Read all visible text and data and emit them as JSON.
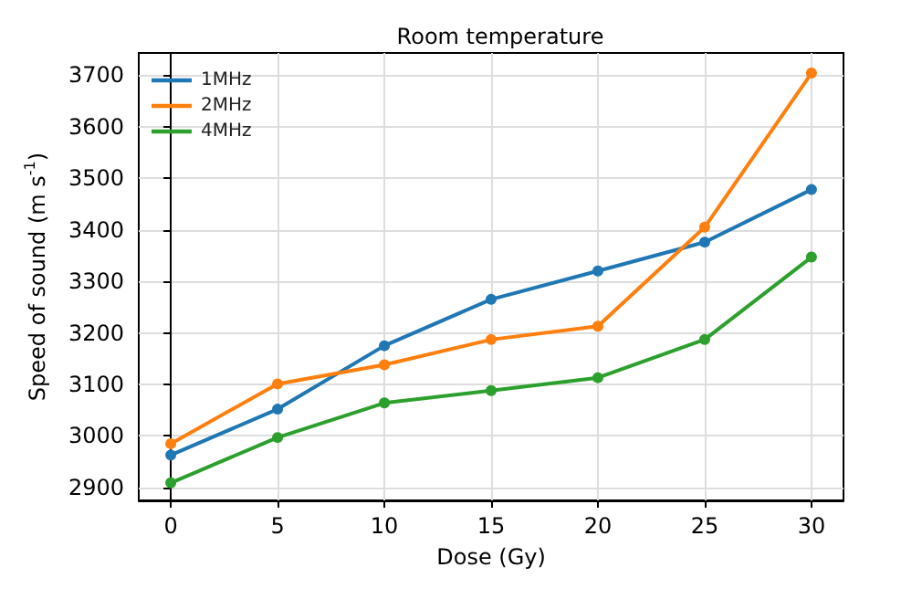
{
  "chart_data": {
    "type": "line",
    "title": "Room temperature",
    "xlabel": "Dose (Gy)",
    "ylabel": "Speed of sound (m s$^{-1}$)",
    "x": [
      0,
      5,
      10,
      15,
      20,
      25,
      30
    ],
    "series": [
      {
        "name": "1MHz",
        "color": "#1f77b4",
        "values": [
          2963,
          3052,
          3175,
          3265,
          3320,
          3376,
          3478
        ]
      },
      {
        "name": "2MHz",
        "color": "#ff7f0e",
        "values": [
          2985,
          3101,
          3138,
          3187,
          3213,
          3405,
          3704
        ]
      },
      {
        "name": "4MHz",
        "color": "#2ca02c",
        "values": [
          2909,
          2997,
          3064,
          3088,
          3113,
          3187,
          3347
        ]
      }
    ],
    "xlim": [
      -1.5,
      31.5
    ],
    "xticks": [
      0,
      5,
      10,
      15,
      20,
      25,
      30
    ],
    "ylim": [
      2875,
      3743
    ],
    "yticks": [
      2900,
      3000,
      3100,
      3200,
      3300,
      3400,
      3500,
      3600,
      3700
    ],
    "grid": true,
    "legend": "top left",
    "marker": "circle",
    "line_style": "solid"
  }
}
